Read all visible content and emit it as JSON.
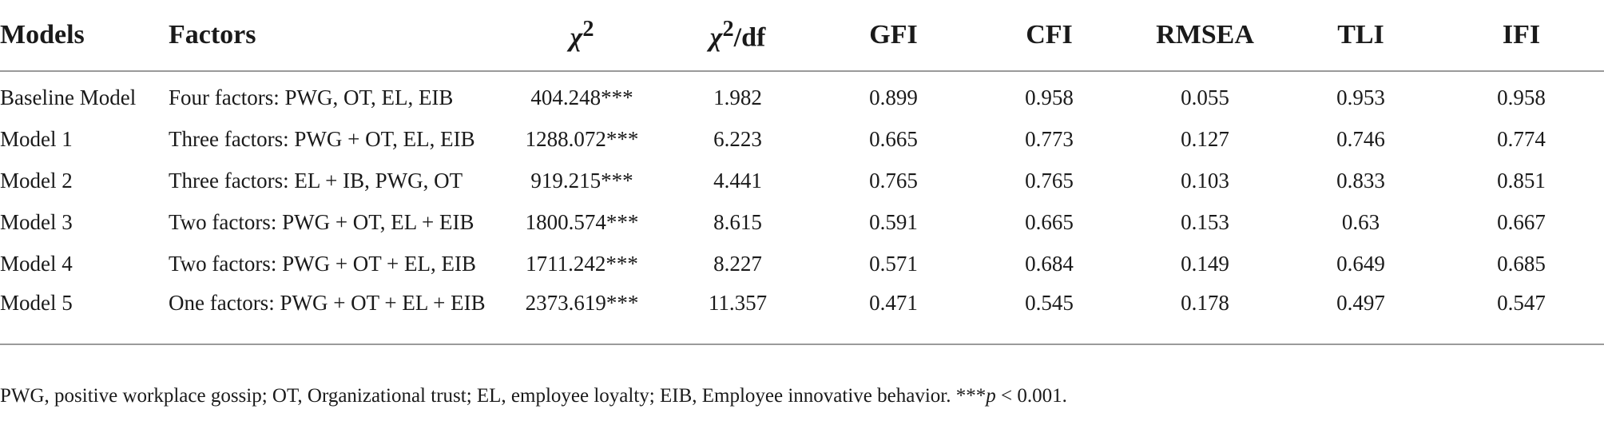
{
  "table": {
    "headers": {
      "models": "Models",
      "factors": "Factors",
      "chi2_symbol": "χ",
      "chi2_sup": "2",
      "chi2df_symbol": "χ",
      "chi2df_sup": "2",
      "chi2df_suffix": "/df",
      "gfi": "GFI",
      "cfi": "CFI",
      "rmsea": "RMSEA",
      "tli": "TLI",
      "ifi": "IFI"
    },
    "rows": [
      {
        "model": "Baseline Model",
        "factors": "Four factors: PWG, OT, EL, EIB",
        "chi2": "404.248***",
        "chi2df": "1.982",
        "gfi": "0.899",
        "cfi": "0.958",
        "rmsea": "0.055",
        "tli": "0.953",
        "ifi": "0.958"
      },
      {
        "model": "Model 1",
        "factors": "Three factors: PWG + OT, EL, EIB",
        "chi2": "1288.072***",
        "chi2df": "6.223",
        "gfi": "0.665",
        "cfi": "0.773",
        "rmsea": "0.127",
        "tli": "0.746",
        "ifi": "0.774"
      },
      {
        "model": "Model 2",
        "factors": "Three factors: EL + IB, PWG, OT",
        "chi2": "919.215***",
        "chi2df": "4.441",
        "gfi": "0.765",
        "cfi": "0.765",
        "rmsea": "0.103",
        "tli": "0.833",
        "ifi": "0.851"
      },
      {
        "model": "Model 3",
        "factors": "Two factors: PWG + OT, EL + EIB",
        "chi2": "1800.574***",
        "chi2df": "8.615",
        "gfi": "0.591",
        "cfi": "0.665",
        "rmsea": "0.153",
        "tli": "0.63",
        "ifi": "0.667"
      },
      {
        "model": "Model 4",
        "factors": "Two factors: PWG + OT + EL, EIB",
        "chi2": "1711.242***",
        "chi2df": "8.227",
        "gfi": "0.571",
        "cfi": "0.684",
        "rmsea": "0.149",
        "tli": "0.649",
        "ifi": "0.685"
      },
      {
        "model": "Model 5",
        "factors": "One factors: PWG + OT + EL + EIB",
        "chi2": "2373.619***",
        "chi2df": "11.357",
        "gfi": "0.471",
        "cfi": "0.545",
        "rmsea": "0.178",
        "tli": "0.497",
        "ifi": "0.547"
      }
    ]
  },
  "footnote": {
    "text": "PWG, positive workplace gossip; OT, Organizational trust; EL, employee loyalty; EIB, Employee innovative behavior. ***",
    "p_symbol": "p",
    "threshold": " < 0.001."
  }
}
